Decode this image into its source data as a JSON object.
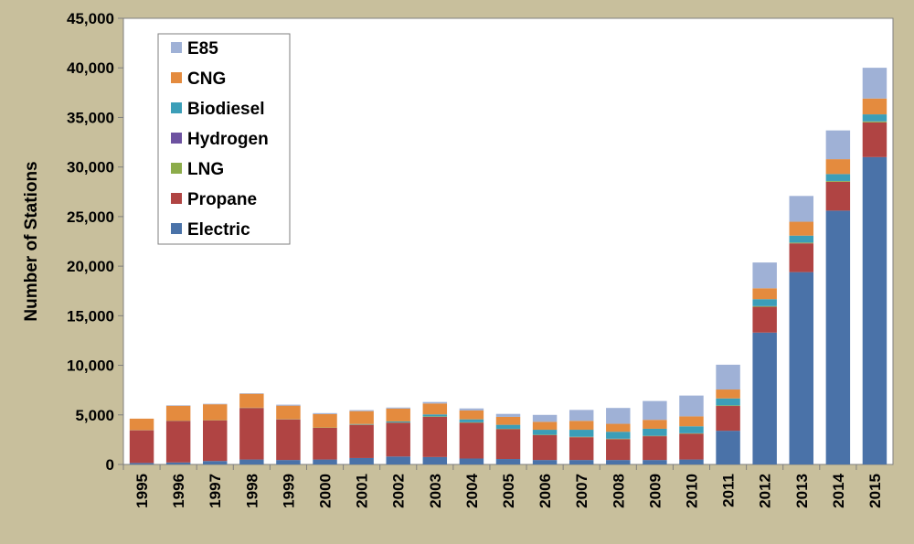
{
  "chart_data": {
    "type": "bar",
    "stacked": true,
    "ylabel": "Number of Stations",
    "xlabel": "",
    "ylim": [
      0,
      45000
    ],
    "yticks": [
      0,
      5000,
      10000,
      15000,
      20000,
      25000,
      30000,
      35000,
      40000,
      45000
    ],
    "grid": false,
    "legend_position": "top-left",
    "categories": [
      "1995",
      "1996",
      "1997",
      "1998",
      "1999",
      "2000",
      "2001",
      "2002",
      "2003",
      "2004",
      "2005",
      "2006",
      "2007",
      "2008",
      "2009",
      "2010",
      "2011",
      "2012",
      "2013",
      "2014",
      "2015"
    ],
    "series": [
      {
        "name": "Electric",
        "color": "#4a72a8",
        "values": [
          150,
          200,
          350,
          500,
          450,
          500,
          650,
          800,
          750,
          600,
          550,
          450,
          450,
          450,
          450,
          500,
          3400,
          13300,
          19400,
          25600,
          31000
        ]
      },
      {
        "name": "Propane",
        "color": "#b04443",
        "values": [
          3300,
          4200,
          4100,
          5200,
          4100,
          3200,
          3350,
          3400,
          4050,
          3600,
          3000,
          2500,
          2300,
          2100,
          2400,
          2600,
          2500,
          2600,
          2900,
          2900,
          3500
        ]
      },
      {
        "name": "LNG",
        "color": "#8cac4a",
        "values": [
          20,
          20,
          20,
          30,
          30,
          30,
          30,
          30,
          40,
          40,
          40,
          40,
          40,
          40,
          40,
          40,
          50,
          60,
          70,
          80,
          100
        ]
      },
      {
        "name": "Hydrogen",
        "color": "#6d52a0",
        "values": [
          0,
          0,
          0,
          0,
          0,
          0,
          0,
          10,
          10,
          10,
          10,
          10,
          10,
          10,
          10,
          10,
          10,
          10,
          10,
          10,
          10
        ]
      },
      {
        "name": "Biodiesel",
        "color": "#3b9eb8",
        "values": [
          0,
          0,
          0,
          0,
          0,
          0,
          50,
          100,
          200,
          300,
          400,
          500,
          700,
          700,
          700,
          700,
          700,
          700,
          700,
          700,
          700
        ]
      },
      {
        "name": "CNG",
        "color": "#e48b3e",
        "values": [
          1150,
          1500,
          1600,
          1400,
          1350,
          1350,
          1300,
          1300,
          1100,
          900,
          800,
          800,
          900,
          800,
          900,
          1000,
          900,
          1100,
          1400,
          1500,
          1600
        ]
      },
      {
        "name": "E85",
        "color": "#9fb1d6",
        "values": [
          0,
          50,
          50,
          50,
          100,
          100,
          100,
          100,
          150,
          200,
          300,
          700,
          1100,
          1600,
          1900,
          2100,
          2500,
          2600,
          2600,
          2900,
          3100
        ]
      }
    ]
  }
}
